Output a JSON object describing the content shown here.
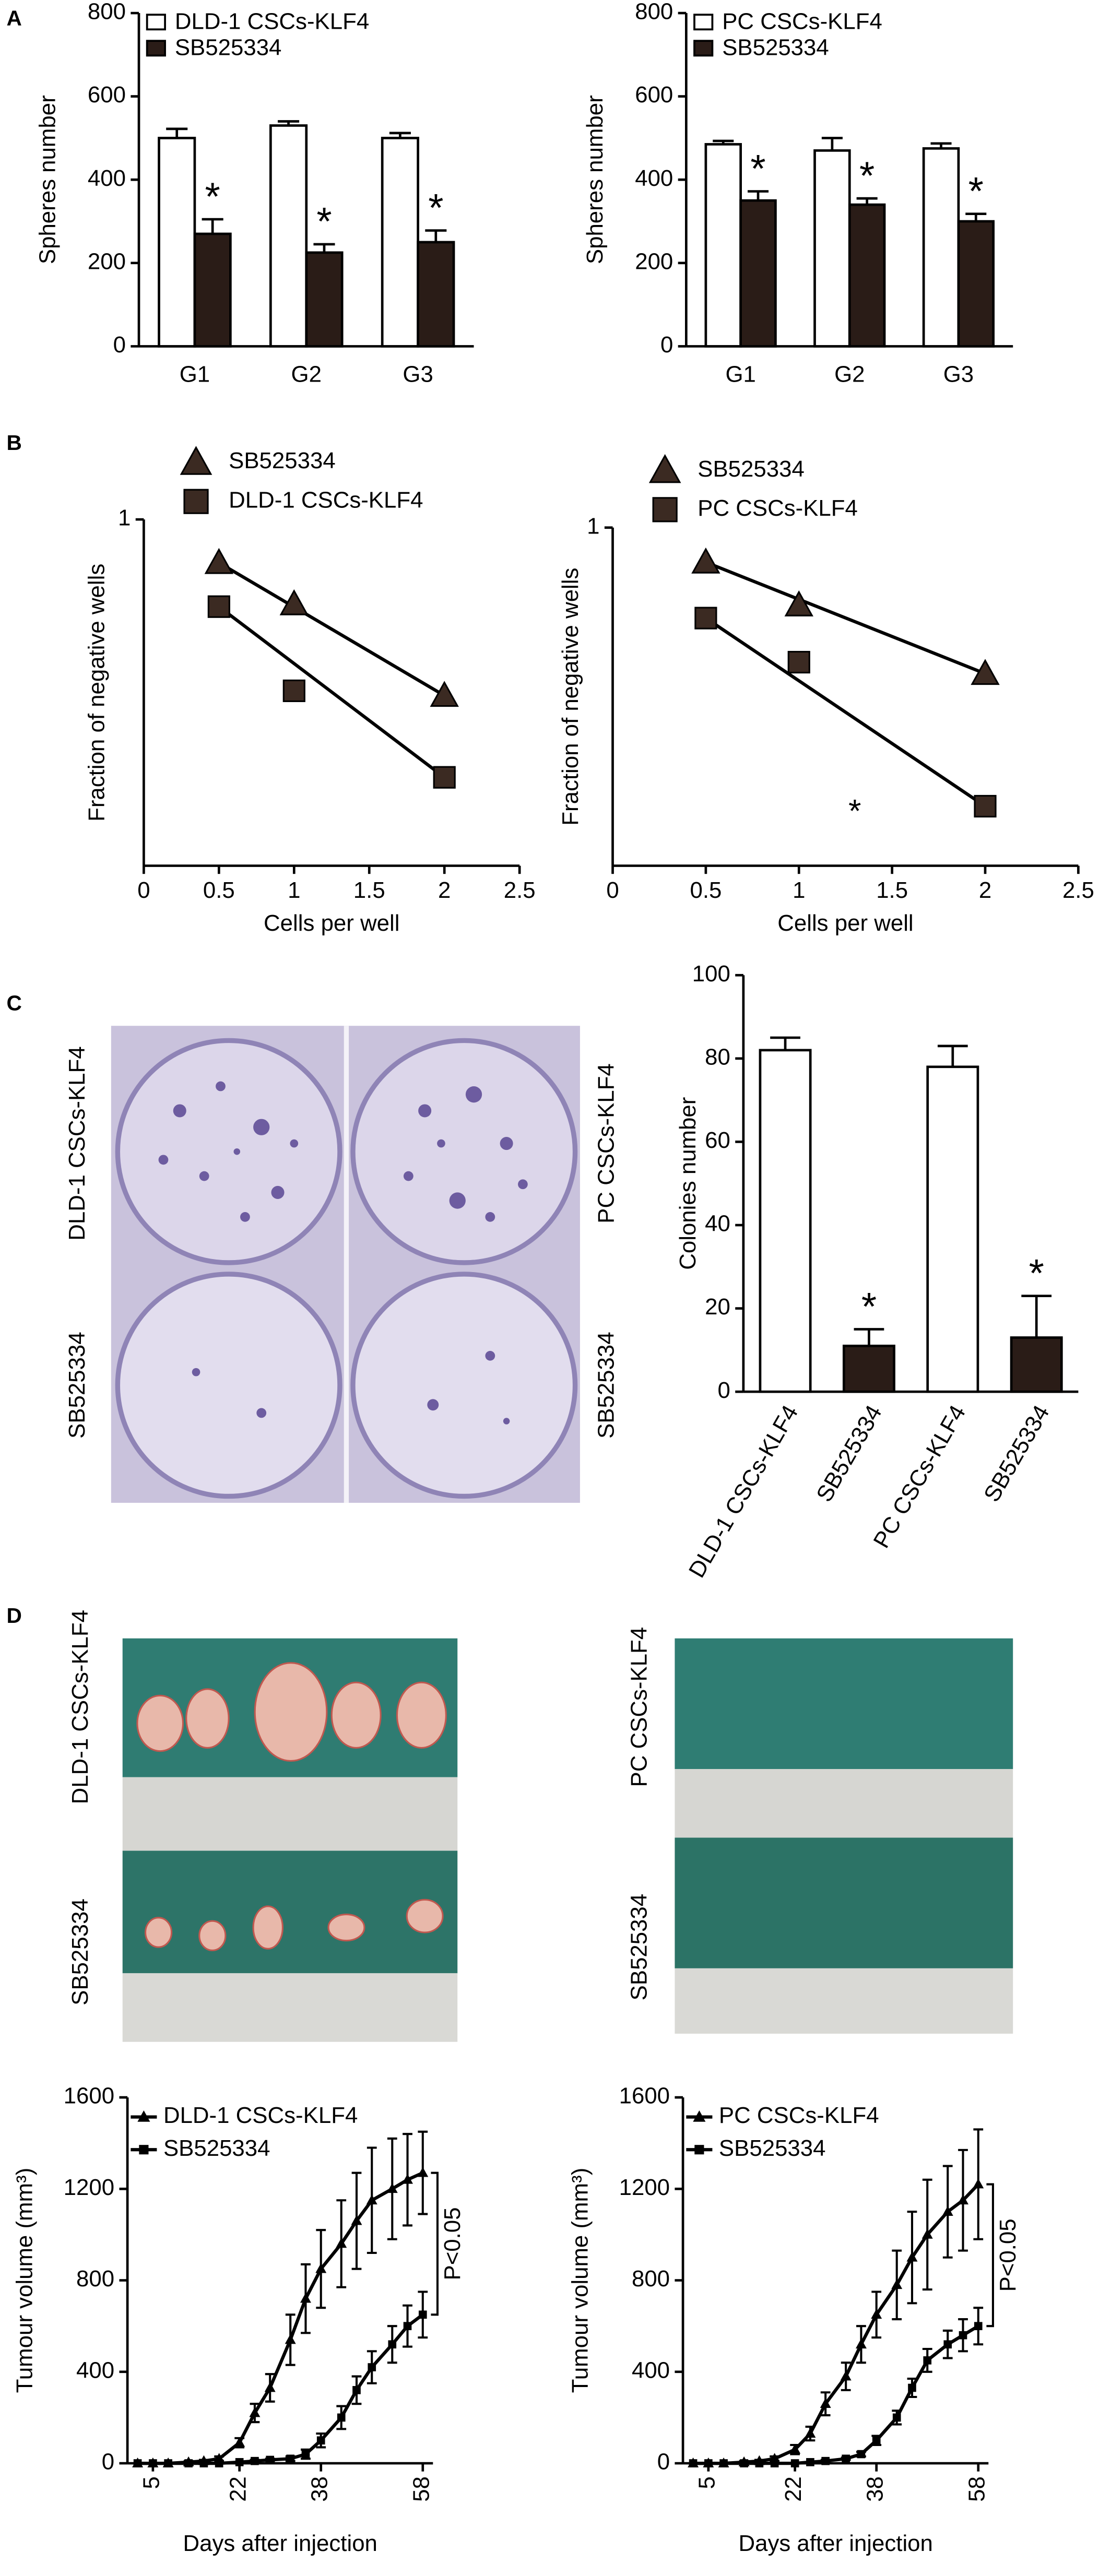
{
  "panel_labels": [
    "A",
    "B",
    "C",
    "D"
  ],
  "photos": {
    "C": [
      "DLD-1 CSCs-KLF4",
      "SB525334",
      "PC CSCs-KLF4",
      "SB525334"
    ],
    "D": [
      "DLD-1 CSCs-KLF4",
      "SB525334",
      "PC CSCs-KLF4",
      "SB525334"
    ]
  },
  "chart_data": [
    {
      "type": "bar",
      "ylabel": "Spheres number",
      "categories": [
        "G1",
        "G2",
        "G3"
      ],
      "series": [
        {
          "name": "DLD-1 CSCs-KLF4",
          "color": "#ffffff",
          "values": [
            500,
            530,
            500
          ],
          "errors": [
            22,
            10,
            12
          ]
        },
        {
          "name": "SB525334",
          "color": "#2a1c17",
          "values": [
            270,
            225,
            250
          ],
          "errors": [
            35,
            20,
            28
          ],
          "annotations": [
            "*",
            "*",
            "*"
          ]
        }
      ],
      "ylim": [
        0,
        800
      ],
      "yticks": [
        0,
        200,
        400,
        600,
        800
      ],
      "legend": "upper left"
    },
    {
      "type": "bar",
      "ylabel": "Spheres number",
      "categories": [
        "G1",
        "G2",
        "G3"
      ],
      "series": [
        {
          "name": "PC CSCs-KLF4",
          "color": "#ffffff",
          "values": [
            485,
            470,
            475
          ],
          "errors": [
            8,
            30,
            12
          ]
        },
        {
          "name": "SB525334",
          "color": "#2a1c17",
          "values": [
            350,
            340,
            300
          ],
          "errors": [
            22,
            15,
            18
          ],
          "annotations": [
            "*",
            "*",
            "*"
          ]
        }
      ],
      "ylim": [
        0,
        800
      ],
      "yticks": [
        0,
        200,
        400,
        600,
        800
      ],
      "legend": "upper left"
    },
    {
      "type": "scatter",
      "xlabel": "Cells per well",
      "ylabel": "Fraction of negative wells",
      "x": [
        0.5,
        1,
        2
      ],
      "series": [
        {
          "name": "SB525334",
          "marker": "triangle",
          "color": "#3b2a22",
          "values": [
            0.75,
            0.57,
            0.31
          ]
        },
        {
          "name": "DLD-1 CSCs-KLF4",
          "marker": "square",
          "color": "#3b2a22",
          "values": [
            0.56,
            0.32,
            0.18
          ]
        }
      ],
      "xlim": [
        0,
        2.5
      ],
      "xticks": [
        0,
        0.5,
        1,
        1.5,
        2,
        2.5
      ],
      "ylim": [
        0.1,
        1
      ],
      "yticks": [
        1
      ],
      "log_y": true,
      "legend": "top"
    },
    {
      "type": "scatter",
      "xlabel": "Cells per well",
      "ylabel": "Fraction of negative wells",
      "x": [
        0.5,
        1,
        2
      ],
      "series": [
        {
          "name": "SB525334",
          "marker": "triangle",
          "color": "#3b2a22",
          "values": [
            0.79,
            0.59,
            0.37
          ]
        },
        {
          "name": "PC CSCs-KLF4",
          "marker": "square",
          "color": "#3b2a22",
          "values": [
            0.54,
            0.4,
            0.15
          ]
        }
      ],
      "xlim": [
        0,
        2.5
      ],
      "xticks": [
        0,
        0.5,
        1,
        1.5,
        2,
        2.5
      ],
      "ylim": [
        0.1,
        1
      ],
      "yticks": [
        1
      ],
      "log_y": true,
      "legend": "top",
      "annotation": "*"
    },
    {
      "type": "bar",
      "ylabel": "Colonies number",
      "categories": [
        "DLD-1 CSCs-KLF4",
        "SB525334",
        "PC CSCs-KLF4",
        "SB525334"
      ],
      "values": [
        82,
        11,
        78,
        13
      ],
      "errors": [
        3,
        4,
        5,
        10
      ],
      "colors": [
        "#ffffff",
        "#2a1c17",
        "#ffffff",
        "#2a1c17"
      ],
      "annotations": [
        null,
        "*",
        null,
        "*"
      ],
      "ylim": [
        0,
        100
      ],
      "yticks": [
        0,
        20,
        40,
        60,
        80,
        100
      ]
    },
    {
      "type": "line",
      "ylabel": "Tumour volume (mm³)",
      "xlabel": "Days after injection",
      "annotation": "P<0.05",
      "x": [
        2,
        5,
        8,
        12,
        15,
        18,
        22,
        25,
        28,
        32,
        35,
        38,
        42,
        45,
        48,
        52,
        55,
        58
      ],
      "series": [
        {
          "name": "DLD-1 CSCs-KLF4",
          "marker": "triangle",
          "color": "#000000",
          "values": [
            0,
            0,
            0,
            5,
            10,
            20,
            90,
            220,
            330,
            540,
            720,
            850,
            960,
            1060,
            1150,
            1200,
            1240,
            1270
          ],
          "errors": [
            0,
            0,
            0,
            5,
            5,
            10,
            20,
            40,
            60,
            110,
            150,
            170,
            190,
            210,
            230,
            220,
            200,
            180
          ]
        },
        {
          "name": "SB525334",
          "marker": "square",
          "color": "#000000",
          "values": [
            0,
            0,
            0,
            0,
            0,
            0,
            5,
            10,
            15,
            20,
            40,
            100,
            200,
            320,
            420,
            520,
            600,
            650
          ],
          "errors": [
            0,
            0,
            0,
            0,
            0,
            0,
            0,
            5,
            5,
            10,
            20,
            30,
            50,
            60,
            70,
            80,
            90,
            100
          ]
        }
      ],
      "xlim": [
        0,
        60
      ],
      "xticks": [
        5,
        22,
        38,
        58
      ],
      "ylim": [
        0,
        1600
      ],
      "yticks": [
        0,
        400,
        800,
        1200,
        1600
      ],
      "legend": "upper left"
    },
    {
      "type": "line",
      "ylabel": "Tumour volume (mm³)",
      "xlabel": "Days after injection",
      "annotation": "P<0.05",
      "x": [
        2,
        5,
        8,
        12,
        15,
        18,
        22,
        25,
        28,
        32,
        35,
        38,
        42,
        45,
        48,
        52,
        55,
        58
      ],
      "series": [
        {
          "name": "PC CSCs-KLF4",
          "marker": "triangle",
          "color": "#000000",
          "values": [
            0,
            0,
            0,
            5,
            10,
            20,
            60,
            130,
            260,
            380,
            520,
            650,
            780,
            900,
            1000,
            1100,
            1150,
            1220
          ],
          "errors": [
            0,
            0,
            0,
            5,
            5,
            10,
            20,
            30,
            50,
            60,
            80,
            100,
            150,
            200,
            240,
            200,
            220,
            240
          ]
        },
        {
          "name": "SB525334",
          "marker": "square",
          "color": "#000000",
          "values": [
            0,
            0,
            0,
            0,
            0,
            0,
            0,
            5,
            10,
            20,
            40,
            100,
            200,
            330,
            450,
            520,
            560,
            600
          ],
          "errors": [
            0,
            0,
            0,
            0,
            0,
            0,
            0,
            0,
            5,
            5,
            10,
            20,
            30,
            40,
            50,
            60,
            70,
            80
          ]
        }
      ],
      "xlim": [
        0,
        60
      ],
      "xticks": [
        5,
        22,
        38,
        58
      ],
      "ylim": [
        0,
        1600
      ],
      "yticks": [
        0,
        400,
        800,
        1200,
        1600
      ],
      "legend": "upper left"
    }
  ]
}
